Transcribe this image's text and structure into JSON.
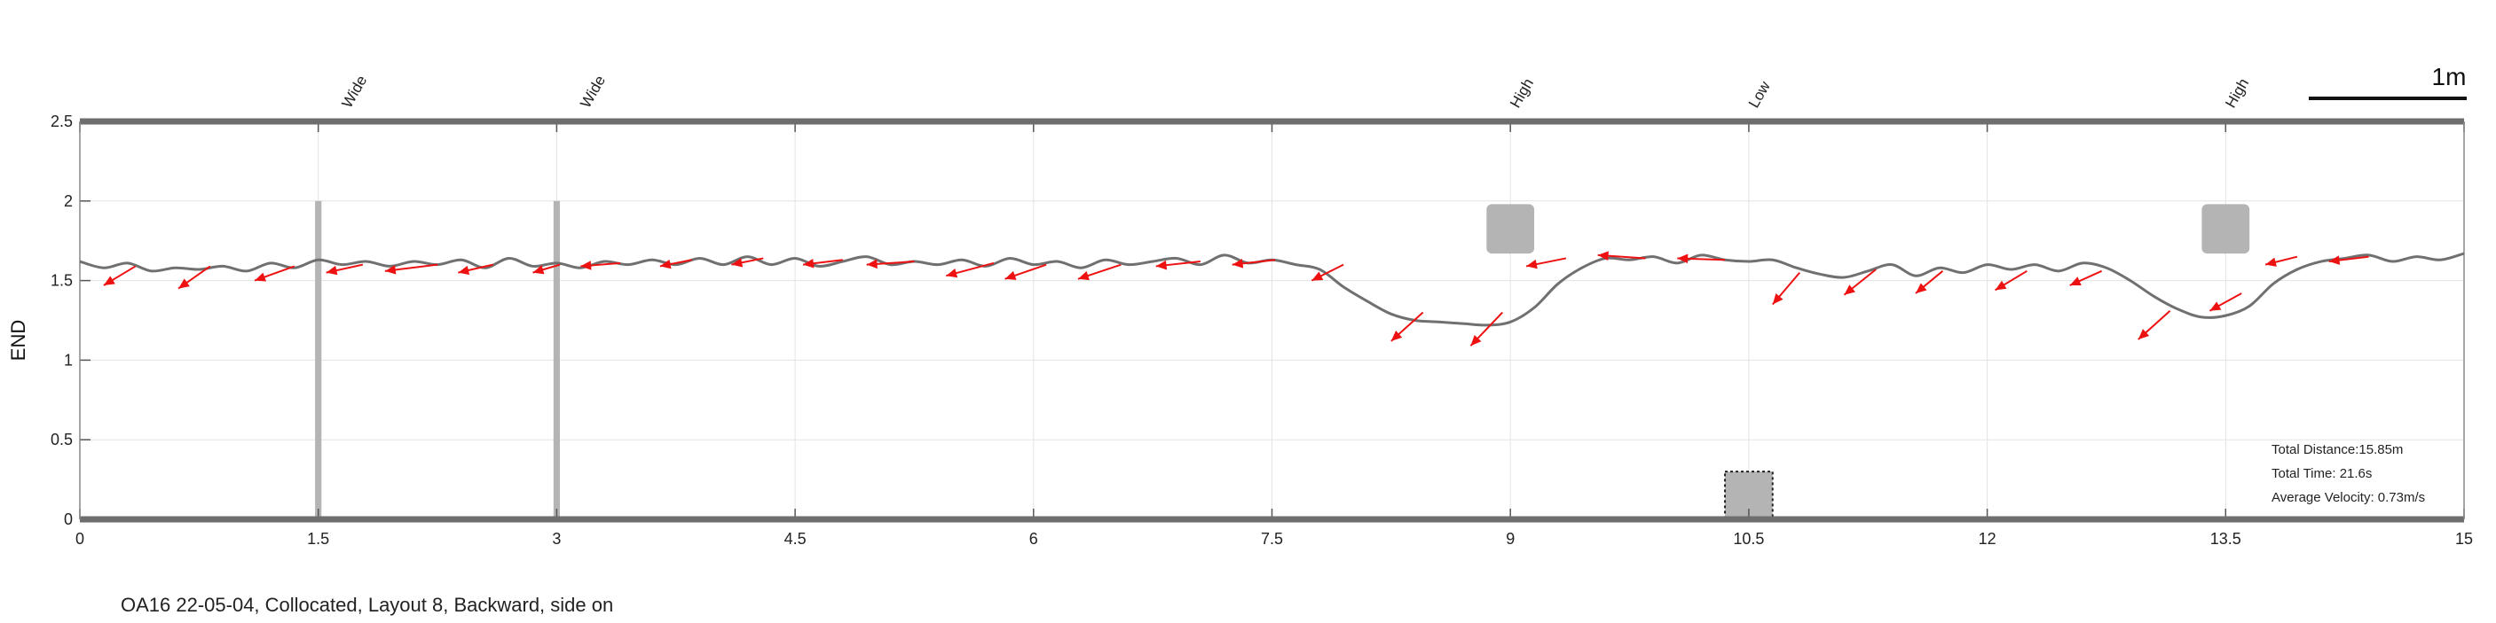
{
  "caption": "OA16 22-05-04, Collocated, Layout 8, Backward, side on",
  "scale_bar_label": "1m",
  "stats": {
    "distance": "Total Distance:15.85m",
    "time": "Total Time: 21.6s",
    "velocity": "Average Velocity: 0.73m/s"
  },
  "colors": {
    "path": "#707070",
    "arrows": "#ee1111",
    "obstacle": "#b4b4b4",
    "frame": "#6e6e6e",
    "grid": "#e3e3e3"
  },
  "chart_data": {
    "type": "line",
    "ylabel": "END",
    "xlim": [
      0,
      15
    ],
    "ylim": [
      0,
      2.5
    ],
    "xticks": [
      "0",
      "1.5",
      "3",
      "4.5",
      "6",
      "7.5",
      "9",
      "10.5",
      "12",
      "13.5",
      "15"
    ],
    "yticks": [
      "0",
      "0.5",
      "1",
      "1.5",
      "2",
      "2.5"
    ],
    "grid": true,
    "obstacle_labels": [
      {
        "x": 1.7,
        "text": "Wide"
      },
      {
        "x": 3.2,
        "text": "Wide"
      },
      {
        "x": 9.05,
        "text": "High"
      },
      {
        "x": 10.55,
        "text": "Low"
      },
      {
        "x": 13.55,
        "text": "High"
      }
    ],
    "obstacles": [
      {
        "kind": "pole",
        "x": [
          1.48,
          1.52
        ],
        "y": [
          0,
          2.0
        ]
      },
      {
        "kind": "pole",
        "x": [
          2.98,
          3.02
        ],
        "y": [
          0,
          2.0
        ]
      },
      {
        "kind": "high-block",
        "x": [
          8.85,
          9.15
        ],
        "y": [
          1.67,
          1.98
        ]
      },
      {
        "kind": "low-block",
        "x": [
          10.35,
          10.65
        ],
        "y": [
          0,
          0.3
        ]
      },
      {
        "kind": "high-block",
        "x": [
          13.35,
          13.65
        ],
        "y": [
          1.67,
          1.98
        ]
      }
    ],
    "series": [
      {
        "x": [
          0,
          0.15,
          0.3,
          0.45,
          0.6,
          0.75,
          0.9,
          1.05,
          1.2,
          1.35,
          1.5,
          1.65,
          1.8,
          1.95,
          2.1,
          2.25,
          2.4,
          2.55,
          2.7,
          2.85,
          3.0,
          3.15,
          3.3,
          3.45,
          3.6,
          3.75,
          3.9,
          4.05,
          4.2,
          4.35,
          4.5,
          4.65,
          4.8,
          4.95,
          5.1,
          5.25,
          5.4,
          5.55,
          5.7,
          5.85,
          6.0,
          6.15,
          6.3,
          6.45,
          6.6,
          6.75,
          6.9,
          7.05,
          7.2,
          7.35,
          7.5,
          7.65,
          7.8,
          7.95,
          8.1,
          8.25,
          8.4,
          8.55,
          8.7,
          8.85,
          9.0,
          9.15,
          9.3,
          9.45,
          9.6,
          9.75,
          9.9,
          10.05,
          10.2,
          10.35,
          10.5,
          10.65,
          10.8,
          10.95,
          11.1,
          11.25,
          11.4,
          11.55,
          11.7,
          11.85,
          12.0,
          12.15,
          12.3,
          12.45,
          12.6,
          12.75,
          12.9,
          13.05,
          13.2,
          13.35,
          13.5,
          13.65,
          13.8,
          13.95,
          14.1,
          14.25,
          14.4,
          14.55,
          14.7,
          14.85,
          15.0
        ],
        "y": [
          1.62,
          1.58,
          1.61,
          1.56,
          1.58,
          1.57,
          1.59,
          1.56,
          1.61,
          1.58,
          1.63,
          1.6,
          1.62,
          1.59,
          1.62,
          1.6,
          1.63,
          1.58,
          1.64,
          1.59,
          1.61,
          1.58,
          1.62,
          1.6,
          1.63,
          1.6,
          1.64,
          1.6,
          1.65,
          1.6,
          1.64,
          1.59,
          1.62,
          1.65,
          1.6,
          1.62,
          1.6,
          1.63,
          1.59,
          1.64,
          1.6,
          1.62,
          1.58,
          1.63,
          1.6,
          1.62,
          1.64,
          1.6,
          1.66,
          1.61,
          1.63,
          1.6,
          1.57,
          1.46,
          1.37,
          1.29,
          1.25,
          1.24,
          1.23,
          1.22,
          1.24,
          1.33,
          1.48,
          1.58,
          1.64,
          1.63,
          1.65,
          1.61,
          1.66,
          1.63,
          1.62,
          1.63,
          1.58,
          1.54,
          1.52,
          1.56,
          1.6,
          1.53,
          1.58,
          1.55,
          1.6,
          1.57,
          1.6,
          1.56,
          1.61,
          1.58,
          1.5,
          1.4,
          1.32,
          1.27,
          1.28,
          1.34,
          1.48,
          1.57,
          1.62,
          1.64,
          1.66,
          1.62,
          1.65,
          1.63,
          1.67
        ]
      }
    ],
    "arrows": [
      [
        0.35,
        1.59,
        0.15,
        1.47
      ],
      [
        0.82,
        1.59,
        0.62,
        1.45
      ],
      [
        1.35,
        1.59,
        1.1,
        1.5
      ],
      [
        1.78,
        1.6,
        1.55,
        1.55
      ],
      [
        2.25,
        1.6,
        1.92,
        1.56
      ],
      [
        2.6,
        1.6,
        2.38,
        1.55
      ],
      [
        3.02,
        1.6,
        2.85,
        1.55
      ],
      [
        3.4,
        1.61,
        3.15,
        1.59
      ],
      [
        3.85,
        1.63,
        3.65,
        1.59
      ],
      [
        4.3,
        1.64,
        4.1,
        1.6
      ],
      [
        4.8,
        1.63,
        4.55,
        1.6
      ],
      [
        5.25,
        1.62,
        4.95,
        1.6
      ],
      [
        5.75,
        1.61,
        5.45,
        1.53
      ],
      [
        6.08,
        1.6,
        5.82,
        1.51
      ],
      [
        6.55,
        1.6,
        6.28,
        1.51
      ],
      [
        7.05,
        1.62,
        6.77,
        1.59
      ],
      [
        7.52,
        1.63,
        7.25,
        1.6
      ],
      [
        7.95,
        1.6,
        7.75,
        1.5
      ],
      [
        8.45,
        1.3,
        8.25,
        1.12
      ],
      [
        8.95,
        1.3,
        8.75,
        1.09
      ],
      [
        9.35,
        1.64,
        9.1,
        1.59
      ],
      [
        9.85,
        1.64,
        9.55,
        1.66
      ],
      [
        10.35,
        1.63,
        10.05,
        1.64
      ],
      [
        10.82,
        1.55,
        10.65,
        1.35
      ],
      [
        11.3,
        1.57,
        11.1,
        1.41
      ],
      [
        11.72,
        1.56,
        11.55,
        1.42
      ],
      [
        12.25,
        1.56,
        12.05,
        1.44
      ],
      [
        12.72,
        1.56,
        12.52,
        1.47
      ],
      [
        13.15,
        1.31,
        12.95,
        1.13
      ],
      [
        13.6,
        1.42,
        13.4,
        1.31
      ],
      [
        13.95,
        1.65,
        13.75,
        1.6
      ],
      [
        14.4,
        1.65,
        14.15,
        1.62
      ]
    ]
  }
}
